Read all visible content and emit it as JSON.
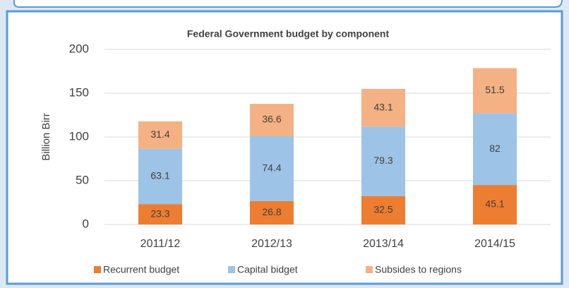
{
  "chart_data": {
    "type": "stacked_bar",
    "title": "Federal Government budget by component",
    "y_label": "Billion Birr",
    "categories": [
      "2011/12",
      "2012/13",
      "2013/14",
      "2014/15"
    ],
    "series": [
      {
        "name": "Recurrent budget",
        "color": "#ed7d31",
        "values": [
          23.3,
          26.8,
          32.5,
          45.1
        ]
      },
      {
        "name": "Capital bidget",
        "color": "#9dc3e6",
        "values": [
          63.1,
          74.4,
          79.3,
          82
        ]
      },
      {
        "name": "Subsides to regions",
        "color": "#f4b183",
        "values": [
          31.4,
          36.6,
          43.1,
          51.5
        ]
      }
    ],
    "ylim": [
      0,
      200
    ],
    "yticks": [
      0,
      50,
      100,
      150,
      200
    ],
    "grid": true,
    "legend": "bottom"
  }
}
